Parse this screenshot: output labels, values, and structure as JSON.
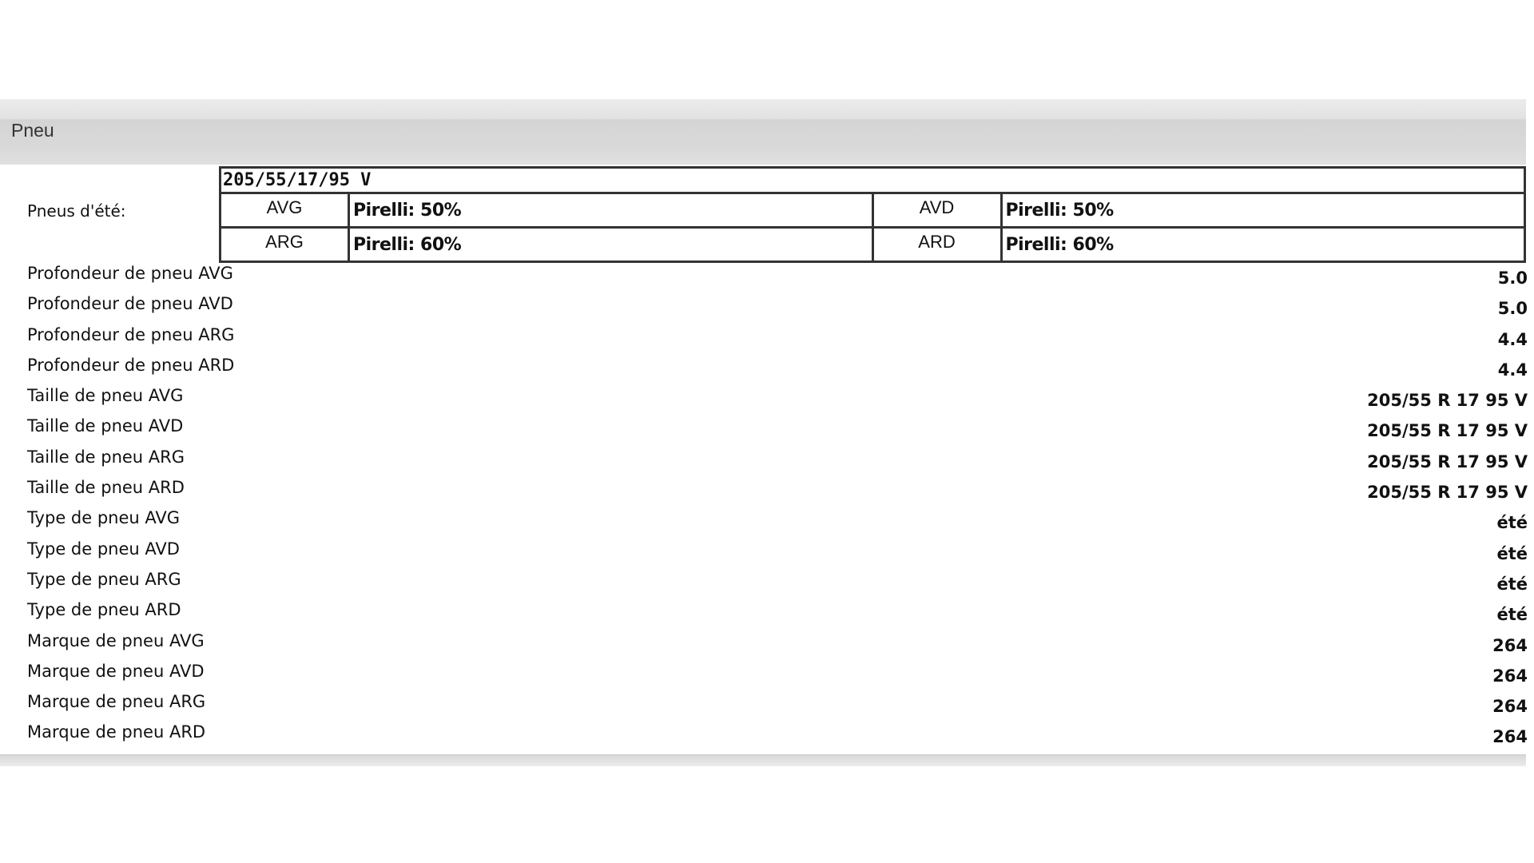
{
  "section": {
    "title": "Pneu"
  },
  "summer": {
    "label": "Pneus d'été:",
    "size": "205/55/17/95 V",
    "cells": [
      {
        "pos": "AVG",
        "value": "Pirelli: 50%"
      },
      {
        "pos": "AVD",
        "value": "Pirelli: 50%"
      },
      {
        "pos": "ARG",
        "value": "Pirelli: 60%"
      },
      {
        "pos": "ARD",
        "value": "Pirelli: 60%"
      }
    ]
  },
  "rows": [
    {
      "label": "Profondeur de pneu AVG",
      "value": "5.0"
    },
    {
      "label": "Profondeur de pneu AVD",
      "value": "5.0"
    },
    {
      "label": "Profondeur de pneu ARG",
      "value": "4.4"
    },
    {
      "label": "Profondeur de pneu ARD",
      "value": "4.4"
    },
    {
      "label": "Taille de pneu AVG",
      "value": "205/55 R 17 95 V"
    },
    {
      "label": "Taille de pneu AVD",
      "value": "205/55 R 17 95 V"
    },
    {
      "label": "Taille de pneu ARG",
      "value": "205/55 R 17 95 V"
    },
    {
      "label": "Taille de pneu ARD",
      "value": "205/55 R 17 95 V"
    },
    {
      "label": "Type de pneu AVG",
      "value": "été"
    },
    {
      "label": "Type de pneu AVD",
      "value": "été"
    },
    {
      "label": "Type de pneu ARG",
      "value": "été"
    },
    {
      "label": "Type de pneu ARD",
      "value": "été"
    },
    {
      "label": "Marque de pneu AVG",
      "value": "264"
    },
    {
      "label": "Marque de pneu AVD",
      "value": "264"
    },
    {
      "label": "Marque de pneu ARG",
      "value": "264"
    },
    {
      "label": "Marque de pneu ARD",
      "value": "264"
    }
  ]
}
